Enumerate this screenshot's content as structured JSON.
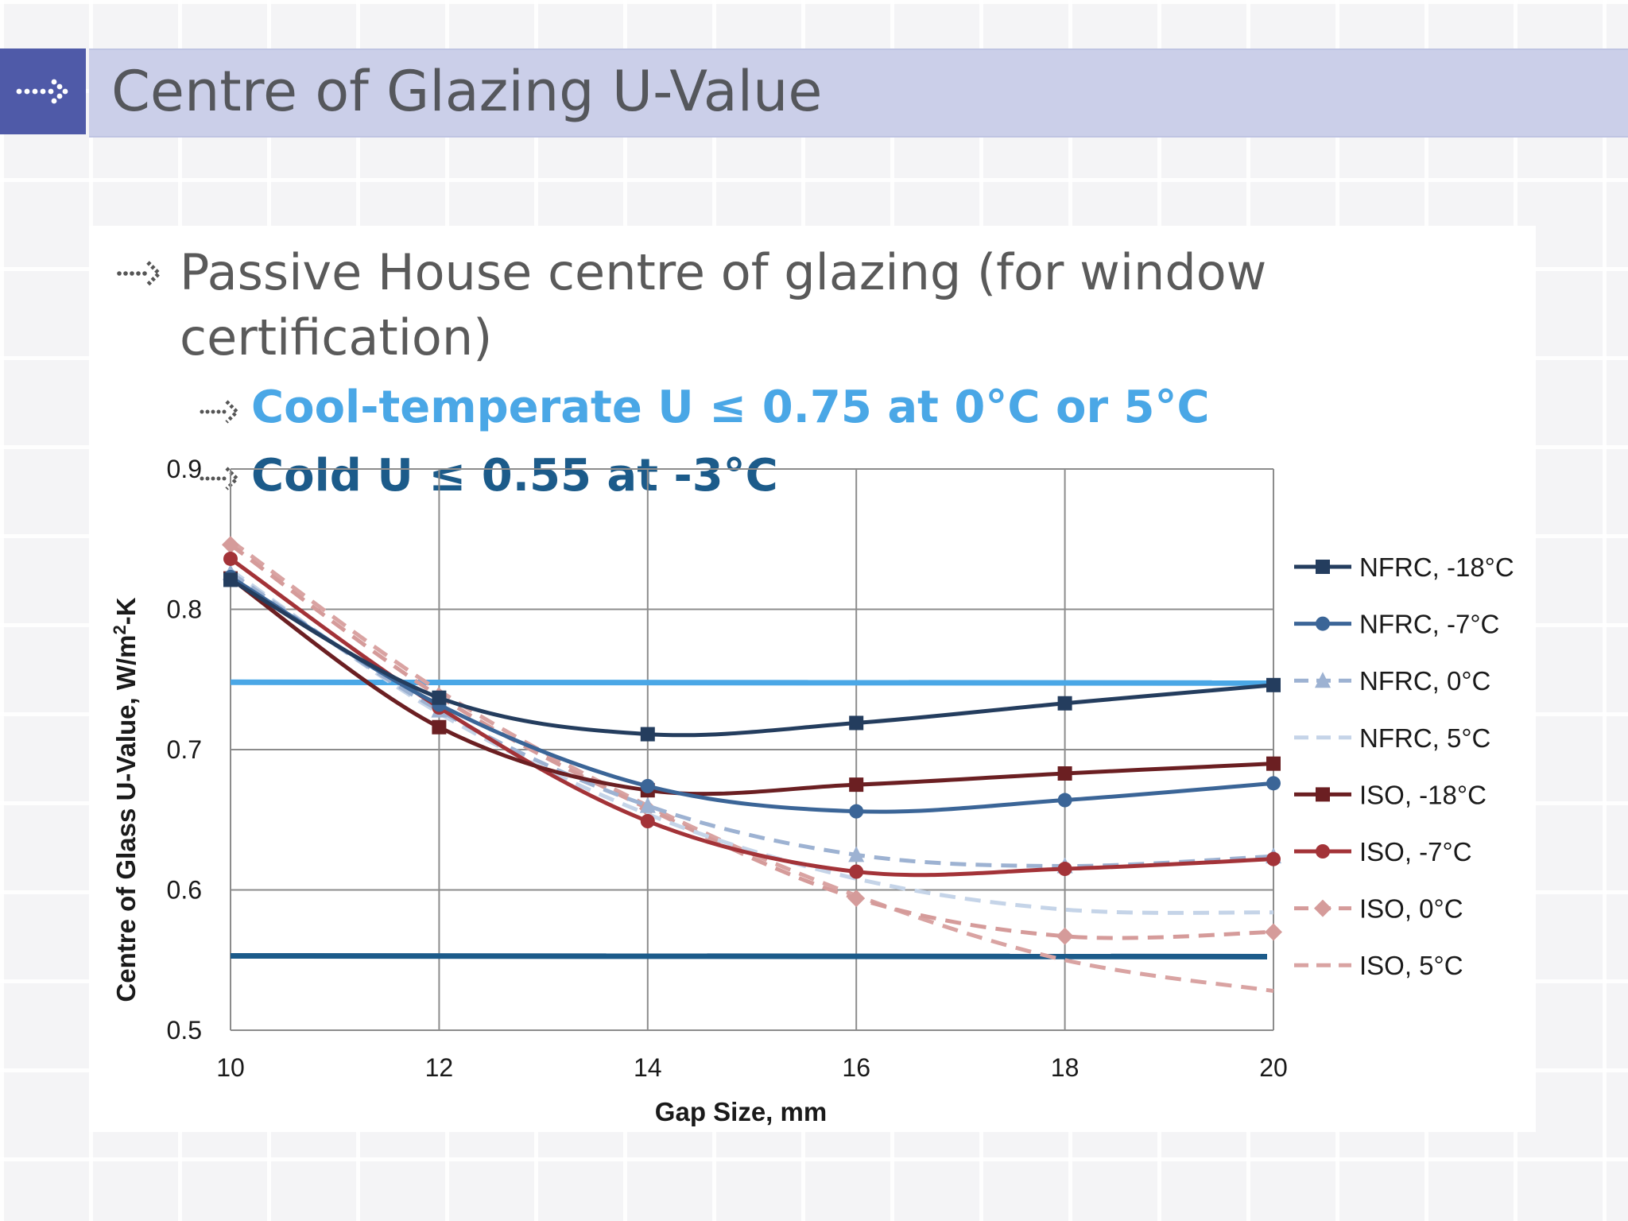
{
  "slide": {
    "title": "Centre of Glazing U-Value",
    "bullet1": "Passive House centre of glazing (for window certification)",
    "bullet2": "Cool-temperate U ≤ 0.75 at 0°C or 5°C",
    "bullet3": "Cold U ≤ 0.55 at -3°C"
  },
  "icons": [
    "dotted-arrow-icon"
  ],
  "colors": {
    "title_bar": "#cbcfe9",
    "arrow_box": "#4f5aa8",
    "cool_temperate": "#4aa7e6",
    "cold": "#1c5b8a"
  },
  "chart_data": {
    "type": "line",
    "xlabel": "Gap Size, mm",
    "ylabel": "Centre of Glass U-Value, W/m²-K",
    "xlim": [
      10,
      20
    ],
    "ylim": [
      0.5,
      0.9
    ],
    "xticks": [
      10,
      12,
      14,
      16,
      18,
      20
    ],
    "yticks": [
      0.5,
      0.6,
      0.7,
      0.8,
      0.9
    ],
    "grid": true,
    "legend_position": "right",
    "x": [
      10,
      12,
      14,
      16,
      18,
      20
    ],
    "series": [
      {
        "name": "NFRC, -18°C",
        "values": [
          0.821,
          0.737,
          0.711,
          0.719,
          0.733,
          0.746
        ],
        "color": "#243d5e",
        "dash": "solid",
        "marker": "square"
      },
      {
        "name": "NFRC, -7°C",
        "values": [
          0.823,
          0.732,
          0.674,
          0.656,
          0.664,
          0.676
        ],
        "color": "#3b6597",
        "dash": "solid",
        "marker": "circle"
      },
      {
        "name": "NFRC, 0°C",
        "values": [
          0.826,
          0.728,
          0.66,
          0.625,
          0.617,
          0.624
        ],
        "color": "#9db2d2",
        "dash": "dashed",
        "marker": "triangle"
      },
      {
        "name": "NFRC, 5°C",
        "values": [
          0.828,
          0.726,
          0.654,
          0.608,
          0.586,
          0.584
        ],
        "color": "#c5d4e8",
        "dash": "dashed",
        "marker": "none"
      },
      {
        "name": "ISO, -18°C",
        "values": [
          0.822,
          0.716,
          0.671,
          0.675,
          0.683,
          0.69
        ],
        "color": "#6b1f22",
        "dash": "solid",
        "marker": "square"
      },
      {
        "name": "ISO, -7°C",
        "values": [
          0.836,
          0.73,
          0.649,
          0.613,
          0.615,
          0.622
        ],
        "color": "#a33338",
        "dash": "solid",
        "marker": "circle"
      },
      {
        "name": "ISO, 0°C",
        "values": [
          0.846,
          0.738,
          0.658,
          0.594,
          0.567,
          0.57
        ],
        "color": "#d59b9a",
        "dash": "dashed",
        "marker": "diamond"
      },
      {
        "name": "ISO, 5°C",
        "values": [
          0.849,
          0.742,
          0.66,
          0.596,
          0.55,
          0.528
        ],
        "color": "#d9a3a2",
        "dash": "dashed",
        "marker": "none"
      }
    ],
    "reference_lines": [
      {
        "value": 0.748,
        "x_range": [
          10,
          20
        ],
        "color": "#4aa7e6"
      },
      {
        "value": 0.553,
        "x_range": [
          10,
          20
        ],
        "color": "#1c5b8a"
      }
    ]
  }
}
